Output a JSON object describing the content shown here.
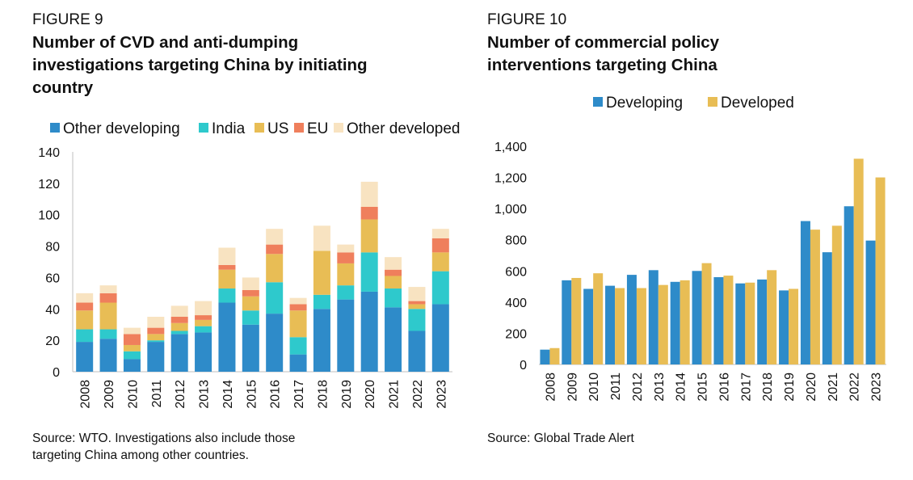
{
  "figure9": {
    "label": "FIGURE 9",
    "title_lines": [
      "Number of CVD and anti-dumping",
      "investigations targeting China by initiating",
      "country"
    ],
    "source_lines": [
      "Source: WTO. Investigations also include those",
      "targeting China among other countries."
    ]
  },
  "figure10": {
    "label": "FIGURE 10",
    "title_lines": [
      "Number of commercial policy",
      "interventions targeting China"
    ],
    "source_lines": [
      "Source: Global Trade Alert"
    ]
  },
  "chart_data": [
    {
      "type": "bar",
      "stacked": true,
      "categories": [
        "2008",
        "2009",
        "2010",
        "2011",
        "2012",
        "2013",
        "2014",
        "2015",
        "2016",
        "2017",
        "2018",
        "2019",
        "2020",
        "2021",
        "2022",
        "2023"
      ],
      "series": [
        {
          "name": "Other developing",
          "color": "#2e8bc9",
          "values": [
            19,
            21,
            8,
            19,
            24,
            25,
            44,
            30,
            37,
            11,
            40,
            46,
            51,
            41,
            26,
            43
          ]
        },
        {
          "name": "India",
          "color": "#2ec9cc",
          "values": [
            8,
            6,
            5,
            1,
            2,
            4,
            9,
            9,
            20,
            11,
            9,
            9,
            25,
            12,
            14,
            21
          ]
        },
        {
          "name": "US",
          "color": "#e8bd55",
          "values": [
            12,
            17,
            4,
            4,
            5,
            4,
            12,
            9,
            18,
            17,
            28,
            14,
            21,
            8,
            3,
            12
          ]
        },
        {
          "name": "EU",
          "color": "#ef7f5c",
          "values": [
            5,
            6,
            7,
            4,
            4,
            3,
            3,
            4,
            6,
            4,
            0,
            7,
            8,
            4,
            2,
            9
          ]
        },
        {
          "name": "Other developed",
          "color": "#f8e3c1",
          "values": [
            6,
            5,
            4,
            7,
            7,
            9,
            11,
            8,
            10,
            4,
            16,
            5,
            16,
            8,
            9,
            6
          ]
        }
      ],
      "yticks": [
        "0",
        "20",
        "40",
        "60",
        "80",
        "100",
        "120",
        "140"
      ],
      "ylim": [
        0,
        140
      ],
      "grid": false,
      "legend": "top"
    },
    {
      "type": "bar",
      "stacked": false,
      "categories": [
        "2008",
        "2009",
        "2010",
        "2011",
        "2012",
        "2013",
        "2014",
        "2015",
        "2016",
        "2017",
        "2018",
        "2019",
        "2020",
        "2021",
        "2022",
        "2023"
      ],
      "series": [
        {
          "name": "Developing",
          "color": "#2e8bc9",
          "values": [
            95,
            540,
            485,
            505,
            575,
            605,
            530,
            600,
            560,
            520,
            545,
            475,
            920,
            720,
            1015,
            795
          ]
        },
        {
          "name": "Developed",
          "color": "#e8bd55",
          "values": [
            105,
            555,
            585,
            490,
            490,
            510,
            540,
            650,
            570,
            525,
            605,
            485,
            865,
            890,
            1320,
            1200
          ]
        }
      ],
      "yticks": [
        "0",
        "200",
        "400",
        "600",
        "800",
        "1,000",
        "1,200",
        "1,400"
      ],
      "ylim": [
        0,
        1400
      ],
      "grid": false,
      "legend": "top"
    }
  ]
}
